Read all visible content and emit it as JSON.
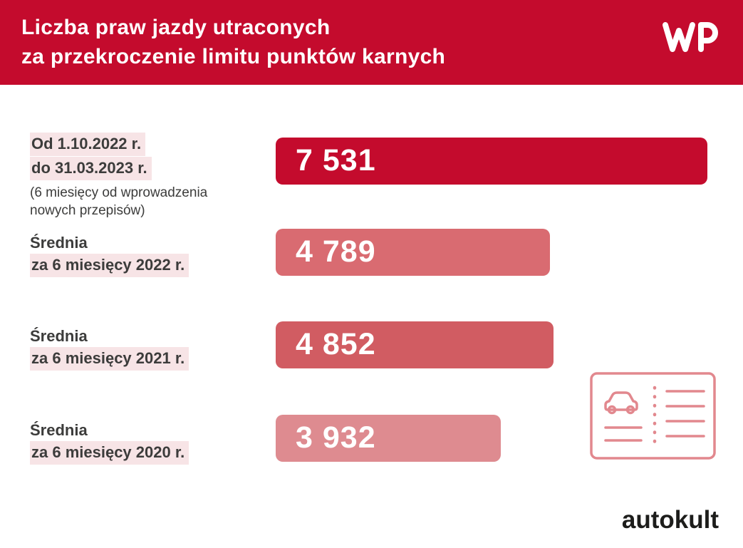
{
  "header": {
    "title_lines": [
      "Liczba praw jazdy utraconych",
      "za przekroczenie limitu punktów karnych"
    ],
    "logo": "WP"
  },
  "chart_data": {
    "type": "bar",
    "orientation": "horizontal",
    "title": "Liczba praw jazdy utraconych za przekroczenie limitu punktów karnych",
    "max_value": 7531,
    "xlim": [
      0,
      7531
    ],
    "grid": false,
    "legend": "none",
    "categories": [
      "Od 1.10.2022 r. do 31.03.2023 r. (6 miesięcy od wprowadzenia nowych przepisów)",
      "Średnia za 6 miesięcy 2022 r.",
      "Średnia za 6 miesięcy 2021 r.",
      "Średnia za 6 miesięcy 2020 r."
    ],
    "values": [
      7531,
      4789,
      4852,
      3932
    ],
    "bars": [
      {
        "label_highlight_lines": [
          "Od 1.10.2022 r.",
          "do 31.03.2023 r."
        ],
        "label_note_lines": [
          "(6 miesięcy od wprowadzenia",
          "nowych przepisów)"
        ],
        "value": 7531,
        "value_label": "7 531",
        "color": "#C40B2D"
      },
      {
        "label_plain": "Średnia",
        "label_highlight": "za 6 miesięcy 2022 r.",
        "value": 4789,
        "value_label": "4 789",
        "color": "#D96B71"
      },
      {
        "label_plain": "Średnia",
        "label_highlight": "za 6 miesięcy 2021 r.",
        "value": 4852,
        "value_label": "4 852",
        "color": "#D15C62"
      },
      {
        "label_plain": "Średnia",
        "label_highlight": "za 6 miesięcy 2020 r.",
        "value": 3932,
        "value_label": "3 932",
        "color": "#DE8B90"
      }
    ]
  },
  "footer": {
    "brand": "autokult"
  },
  "colors": {
    "header_bg": "#C40B2D",
    "highlight_bg": "#F7E4E6",
    "text": "#3C3C3B",
    "icon_stroke": "#E2888E",
    "brand_text": "#1D1D1B"
  }
}
